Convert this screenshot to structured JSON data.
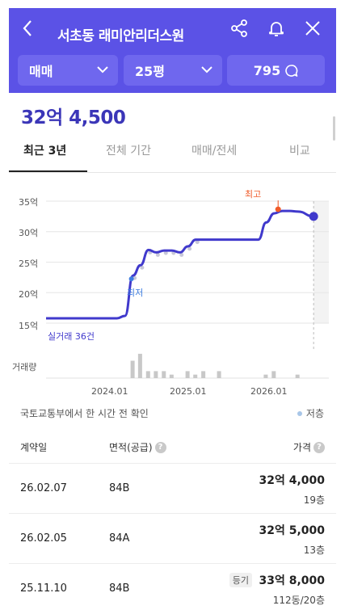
{
  "header": {
    "title": "서초동 래미안리더스원",
    "filters": [
      {
        "label": "매매"
      },
      {
        "label": "25평"
      },
      {
        "label": "795"
      }
    ]
  },
  "price": "32억 4,500",
  "tabs": [
    "최근 3년",
    "전체 기간",
    "매매/전세",
    "비교"
  ],
  "chart_data": {
    "type": "line",
    "series": [
      {
        "values": [
          {
            "x": "2023-03",
            "y": 15.8
          },
          {
            "x": "2023-12",
            "y": 15.8
          },
          {
            "x": "2024-01",
            "y": 16.2
          },
          {
            "x": "2024-02",
            "y": 22.8
          },
          {
            "x": "2024-03",
            "y": 24.5
          },
          {
            "x": "2024-04",
            "y": 27.0
          },
          {
            "x": "2024-05",
            "y": 26.6
          },
          {
            "x": "2024-06",
            "y": 26.9
          },
          {
            "x": "2024-07",
            "y": 26.9
          },
          {
            "x": "2024-08",
            "y": 26.6
          },
          {
            "x": "2024-09",
            "y": 27.6
          },
          {
            "x": "2024-10",
            "y": 28.7
          },
          {
            "x": "2024-11",
            "y": 28.7
          },
          {
            "x": "2025-06",
            "y": 28.7
          },
          {
            "x": "2025-07",
            "y": 31.5
          },
          {
            "x": "2025-08",
            "y": 33.0
          },
          {
            "x": "2025-09",
            "y": 33.4
          },
          {
            "x": "2025-10",
            "y": 33.4
          },
          {
            "x": "2025-11",
            "y": 33.3
          },
          {
            "x": "2026-01",
            "y": 32.5
          }
        ]
      }
    ],
    "ylabel": "",
    "y_ticks": [
      "35억",
      "30억",
      "25억",
      "20억",
      "15억"
    ],
    "ylim": [
      15,
      35
    ],
    "x_ticks": [
      "2024.01",
      "2025.01",
      "2026.01"
    ],
    "grid": true,
    "annotations": {
      "high": "최고",
      "low": "최저",
      "count": "실거래 36건"
    },
    "volume_label": "거래량",
    "volume_bars": [
      {
        "x": "2024-02",
        "v": 5
      },
      {
        "x": "2024-03",
        "v": 7
      },
      {
        "x": "2024-04",
        "v": 2
      },
      {
        "x": "2024-05",
        "v": 2
      },
      {
        "x": "2024-06",
        "v": 2
      },
      {
        "x": "2024-07",
        "v": 1
      },
      {
        "x": "2024-09",
        "v": 2
      },
      {
        "x": "2024-10",
        "v": 1
      },
      {
        "x": "2024-11",
        "v": 2
      },
      {
        "x": "2025-01",
        "v": 2
      },
      {
        "x": "2025-07",
        "v": 1
      },
      {
        "x": "2025-08",
        "v": 2
      },
      {
        "x": "2025-11",
        "v": 1
      }
    ],
    "colors": {
      "line": "#4039cc",
      "high": "#f05a28",
      "low": "#3e7de0",
      "volume": "#c8c8c8"
    }
  },
  "source_text": "국토교통부에서 한 시간 전 확인",
  "legend_low": "저층",
  "table": {
    "headers": {
      "date": "계약일",
      "area": "면적(공급)",
      "price": "가격"
    },
    "rows": [
      {
        "date": "26.02.07",
        "area": "84B",
        "price": "32억 4,000",
        "floor": "19층",
        "badge": ""
      },
      {
        "date": "26.02.05",
        "area": "84A",
        "price": "32억 5,000",
        "floor": "13층",
        "badge": ""
      },
      {
        "date": "25.11.10",
        "area": "84B",
        "price": "33억 8,000",
        "floor": "112동/20층",
        "badge": "등기"
      }
    ]
  }
}
